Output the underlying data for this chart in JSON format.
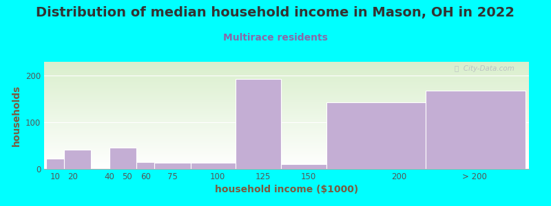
{
  "title": "Distribution of median household income in Mason, OH in 2022",
  "subtitle": "Multirace residents",
  "xlabel": "household income ($1000)",
  "ylabel": "households",
  "background_color": "#00FFFF",
  "bar_color": "#c4aed4",
  "bar_edge_color": "#ffffff",
  "title_color": "#333333",
  "subtitle_color": "#8868a8",
  "axis_label_color": "#7a5c40",
  "tick_label_color": "#555555",
  "watermark_text": "ⓘ  City-Data.com",
  "categories": [
    "10",
    "20",
    "40",
    "50",
    "60",
    "75",
    "100",
    "125",
    "150",
    "200",
    "> 200"
  ],
  "values": [
    22,
    42,
    0,
    45,
    15,
    13,
    13,
    193,
    10,
    143,
    168
  ],
  "bar_lefts": [
    5,
    15,
    30,
    40,
    55,
    65,
    85,
    110,
    135,
    160,
    215
  ],
  "bar_rights": [
    15,
    30,
    40,
    55,
    65,
    85,
    110,
    135,
    160,
    215,
    270
  ],
  "tick_positions": [
    10,
    20,
    40,
    50,
    60,
    75,
    100,
    125,
    150,
    200,
    242
  ],
  "xlim": [
    4,
    272
  ],
  "ylim": [
    0,
    230
  ],
  "yticks": [
    0,
    100,
    200
  ],
  "title_fontsize": 14,
  "subtitle_fontsize": 10,
  "axis_label_fontsize": 10,
  "tick_fontsize": 8.5
}
